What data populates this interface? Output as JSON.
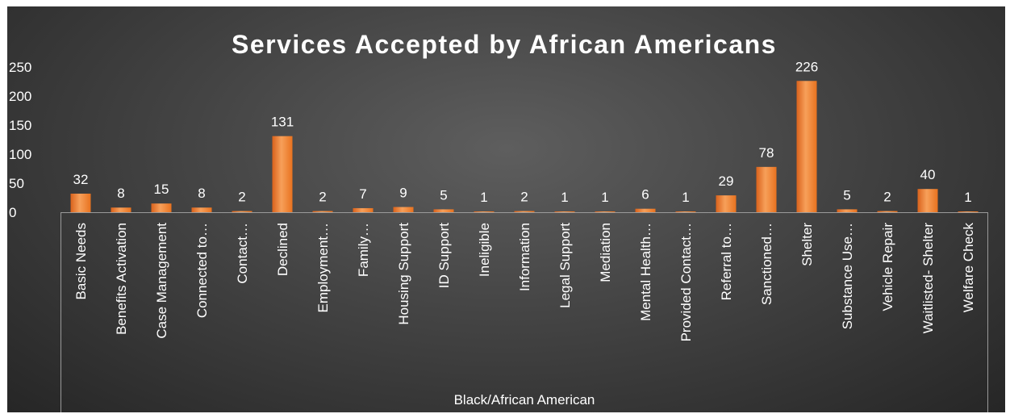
{
  "chart_data": {
    "type": "bar",
    "title": "Services Accepted by African Americans",
    "group_label": "Black/African American",
    "categories": [
      "Basic Needs",
      "Benefits Activation",
      "Case Management",
      "Connected to…",
      "Contact…",
      "Declined",
      "Employment…",
      "Family…",
      "Housing Support",
      "ID Support",
      "Ineligible",
      "Information",
      "Legal Support",
      "Mediation",
      "Mental Health…",
      "Provided Contact…",
      "Referral to…",
      "Sanctioned…",
      "Shelter",
      "Substance Use…",
      "Vehicle Repair",
      "Waitlisted- Shelter",
      "Welfare Check"
    ],
    "values": [
      32,
      8,
      15,
      8,
      2,
      131,
      2,
      7,
      9,
      5,
      1,
      2,
      1,
      1,
      6,
      1,
      29,
      78,
      226,
      5,
      2,
      40,
      1
    ],
    "ylim": [
      0,
      250
    ],
    "yticks": [
      0,
      50,
      100,
      150,
      200,
      250
    ],
    "grid": false,
    "legend": "none",
    "bar_color": "#f07a2a",
    "bar_color_light": "#f7a05a",
    "text_color": "#ffffff"
  }
}
